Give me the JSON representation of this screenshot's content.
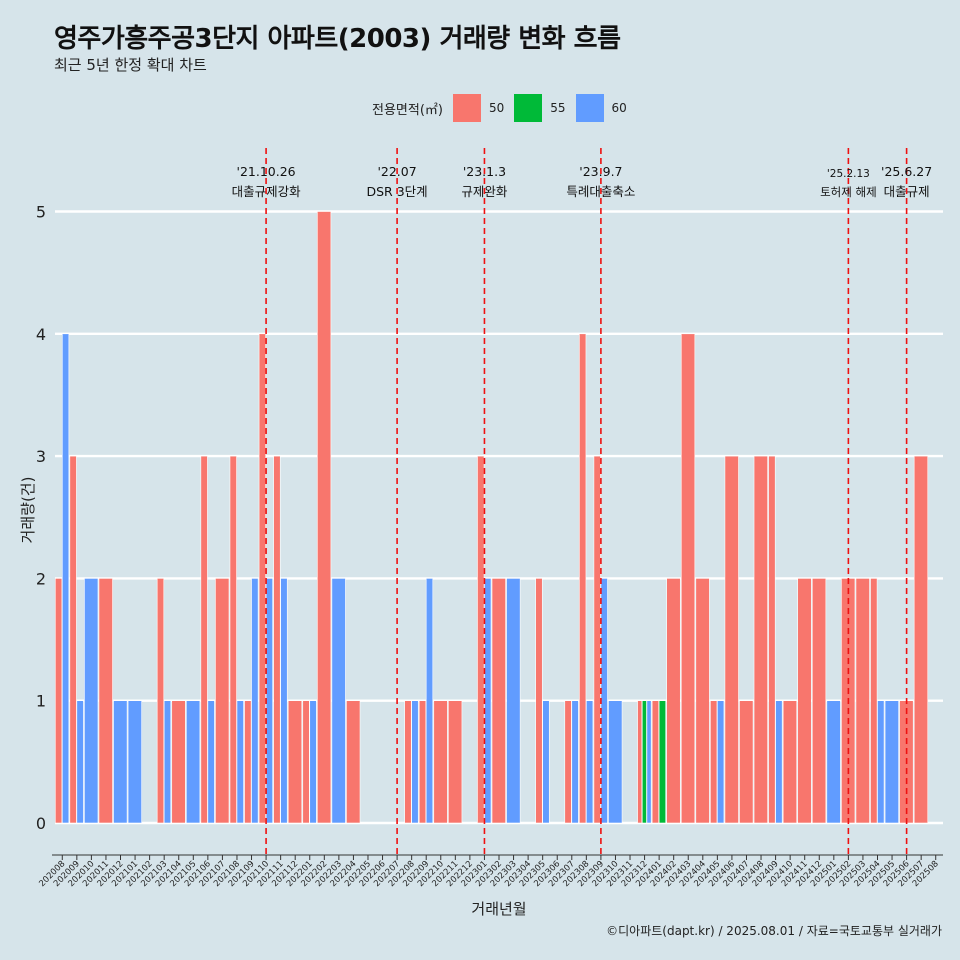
{
  "title": "영주가흥주공3단지 아파트(2003) 거래량 변화 흐름",
  "subtitle": "최근 5년 한정 확대 차트",
  "legend_title": "전용면적(㎡)",
  "legend": [
    {
      "label": "50",
      "color": "#F8766D"
    },
    {
      "label": "55",
      "color": "#00BA38"
    },
    {
      "label": "60",
      "color": "#619CFF"
    }
  ],
  "footer": "©디아파트(dapt.kr) / 2025.08.01 / 자료=국토교통부 실거래가",
  "chart_data": {
    "type": "bar",
    "title": "영주가흥주공3단지 아파트(2003) 거래량 변화 흐름",
    "xlabel": "거래년월",
    "ylabel": "거래량(건)",
    "ylim": [
      0,
      5
    ],
    "yticks": [
      0,
      1,
      2,
      3,
      4,
      5
    ],
    "grid": true,
    "categories": [
      "202008",
      "202009",
      "202010",
      "202011",
      "202012",
      "202101",
      "202102",
      "202103",
      "202104",
      "202105",
      "202106",
      "202107",
      "202108",
      "202109",
      "202110",
      "202111",
      "202112",
      "202201",
      "202202",
      "202203",
      "202204",
      "202205",
      "202206",
      "202207",
      "202208",
      "202209",
      "202210",
      "202211",
      "202212",
      "202301",
      "202302",
      "202303",
      "202304",
      "202305",
      "202306",
      "202307",
      "202308",
      "202309",
      "202310",
      "202311",
      "202312",
      "202401",
      "202402",
      "202403",
      "202404",
      "202405",
      "202406",
      "202407",
      "202408",
      "202409",
      "202410",
      "202411",
      "202412",
      "202501",
      "202502",
      "202503",
      "202504",
      "202505",
      "202506",
      "202507",
      "202508"
    ],
    "series": [
      {
        "name": "50",
        "color": "#F8766D",
        "values": [
          2,
          3,
          0,
          2,
          0,
          0,
          0,
          2,
          1,
          0,
          3,
          2,
          3,
          1,
          4,
          3,
          1,
          1,
          5,
          0,
          1,
          0,
          0,
          0,
          1,
          1,
          1,
          1,
          0,
          3,
          2,
          0,
          0,
          2,
          0,
          1,
          4,
          3,
          0,
          0,
          1,
          1,
          2,
          4,
          2,
          1,
          3,
          1,
          3,
          3,
          1,
          2,
          2,
          0,
          2,
          2,
          2,
          0,
          1,
          3,
          0
        ]
      },
      {
        "name": "55",
        "color": "#00BA38",
        "values": [
          0,
          0,
          0,
          0,
          0,
          0,
          0,
          0,
          0,
          0,
          0,
          0,
          0,
          0,
          0,
          0,
          0,
          0,
          0,
          0,
          0,
          0,
          0,
          0,
          0,
          0,
          0,
          0,
          0,
          0,
          0,
          0,
          0,
          0,
          0,
          0,
          0,
          0,
          0,
          0,
          1,
          1,
          0,
          0,
          0,
          0,
          0,
          0,
          0,
          0,
          0,
          0,
          0,
          0,
          0,
          0,
          0,
          0,
          0,
          0,
          0
        ]
      },
      {
        "name": "60",
        "color": "#619CFF",
        "values": [
          4,
          1,
          2,
          0,
          1,
          1,
          0,
          1,
          0,
          1,
          1,
          0,
          1,
          2,
          2,
          2,
          0,
          1,
          0,
          2,
          0,
          0,
          0,
          0,
          1,
          2,
          0,
          0,
          0,
          2,
          0,
          2,
          0,
          1,
          0,
          1,
          1,
          2,
          1,
          0,
          1,
          0,
          0,
          0,
          0,
          1,
          0,
          0,
          0,
          1,
          0,
          0,
          0,
          1,
          0,
          0,
          1,
          1,
          0,
          0,
          0
        ]
      }
    ],
    "annotations": [
      {
        "date": "'21.10.26",
        "text": "대출규제강화",
        "category": "202110"
      },
      {
        "date": "'22.07",
        "text": "DSR 3단계",
        "category": "202207"
      },
      {
        "date": "'23.1.3",
        "text": "규제완화",
        "category": "202301"
      },
      {
        "date": "'23.9.7",
        "text": "특례대출축소",
        "category": "202309"
      },
      {
        "date": "'25.2.13",
        "text": "토허제 해제",
        "category": "202502"
      },
      {
        "date": "'25.6.27",
        "text": "대출규제",
        "category": "202506"
      }
    ]
  }
}
